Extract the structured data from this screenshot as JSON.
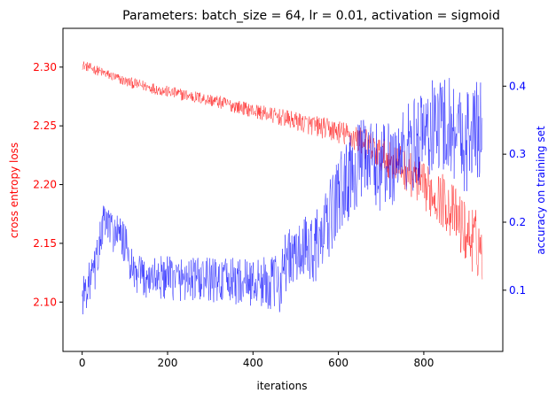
{
  "chart_data": {
    "type": "line",
    "title": "Parameters: batch_size = 64, lr = 0.01, activation = sigmoid",
    "xlabel": "iterations",
    "ylabel_left": "cross entropy loss",
    "ylabel_right": "accuracy on training set",
    "xlim": [
      -45,
      985
    ],
    "ylim_left": [
      2.058,
      2.333
    ],
    "ylim_right": [
      0.01,
      0.485
    ],
    "x_ticks": [
      0,
      200,
      400,
      600,
      800
    ],
    "y_ticks_left": [
      2.1,
      2.15,
      2.2,
      2.25,
      2.3
    ],
    "y_ticks_left_labels": [
      "2.10",
      "2.15",
      "2.20",
      "2.25",
      "2.30"
    ],
    "y_ticks_right": [
      0.1,
      0.2,
      0.3,
      0.4
    ],
    "y_ticks_right_labels": [
      "0.1",
      "0.2",
      "0.3",
      "0.4"
    ],
    "grid": false,
    "iterations": 938,
    "series": [
      {
        "name": "cross entropy loss",
        "axis": "left",
        "color": "#ff0000",
        "trend": [
          [
            0,
            2.302
          ],
          [
            100,
            2.288
          ],
          [
            200,
            2.279
          ],
          [
            300,
            2.272
          ],
          [
            400,
            2.263
          ],
          [
            500,
            2.254
          ],
          [
            600,
            2.245
          ],
          [
            650,
            2.238
          ],
          [
            700,
            2.225
          ],
          [
            750,
            2.215
          ],
          [
            800,
            2.198
          ],
          [
            850,
            2.185
          ],
          [
            880,
            2.17
          ],
          [
            900,
            2.158
          ],
          [
            938,
            2.145
          ]
        ],
        "spread": [
          [
            0,
            0.004
          ],
          [
            400,
            0.006
          ],
          [
            600,
            0.01
          ],
          [
            800,
            0.02
          ],
          [
            938,
            0.03
          ]
        ]
      },
      {
        "name": "accuracy on training set",
        "axis": "right",
        "color": "#0000ff",
        "trend": [
          [
            0,
            0.09
          ],
          [
            30,
            0.13
          ],
          [
            50,
            0.2
          ],
          [
            100,
            0.17
          ],
          [
            120,
            0.12
          ],
          [
            300,
            0.115
          ],
          [
            465,
            0.11
          ],
          [
            470,
            0.14
          ],
          [
            560,
            0.17
          ],
          [
            600,
            0.24
          ],
          [
            650,
            0.29
          ],
          [
            700,
            0.28
          ],
          [
            750,
            0.3
          ],
          [
            800,
            0.33
          ],
          [
            850,
            0.35
          ],
          [
            900,
            0.32
          ],
          [
            938,
            0.34
          ]
        ],
        "spread": [
          [
            0,
            0.03
          ],
          [
            400,
            0.035
          ],
          [
            600,
            0.06
          ],
          [
            938,
            0.08
          ]
        ]
      }
    ]
  }
}
